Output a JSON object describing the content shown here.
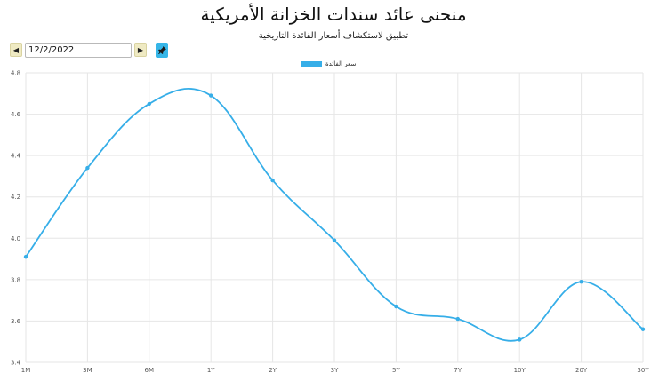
{
  "header": {
    "title": "منحنى عائد سندات الخزانة الأمريكية",
    "subtitle": "تطبيق لاستكشاف أسعار الفائدة التاريخية"
  },
  "controls": {
    "date_value": "12/2/2022",
    "prev_icon": "triangle-left-icon",
    "next_icon": "triangle-right-icon",
    "pin_icon": "pin-icon"
  },
  "colors": {
    "series": "#36aee8",
    "grid": "#e6e6e6",
    "nav_button": "#efeac3",
    "pin_button": "#36b6e8"
  },
  "chart_data": {
    "type": "line",
    "title": "",
    "xlabel": "",
    "ylabel": "",
    "categories": [
      "1M",
      "3M",
      "6M",
      "1Y",
      "2Y",
      "3Y",
      "5Y",
      "7Y",
      "10Y",
      "20Y",
      "30Y"
    ],
    "y_ticks": [
      "3.4",
      "3.6",
      "3.8",
      "4.0",
      "4.2",
      "4.4",
      "4.6",
      "4.8"
    ],
    "ylim": [
      3.4,
      4.8
    ],
    "grid": true,
    "legend_position": "top-center",
    "series": [
      {
        "name": "سعر الفائدة",
        "values": [
          3.91,
          4.34,
          4.65,
          4.69,
          4.28,
          3.99,
          3.67,
          3.61,
          3.51,
          3.79,
          3.56
        ]
      }
    ]
  }
}
